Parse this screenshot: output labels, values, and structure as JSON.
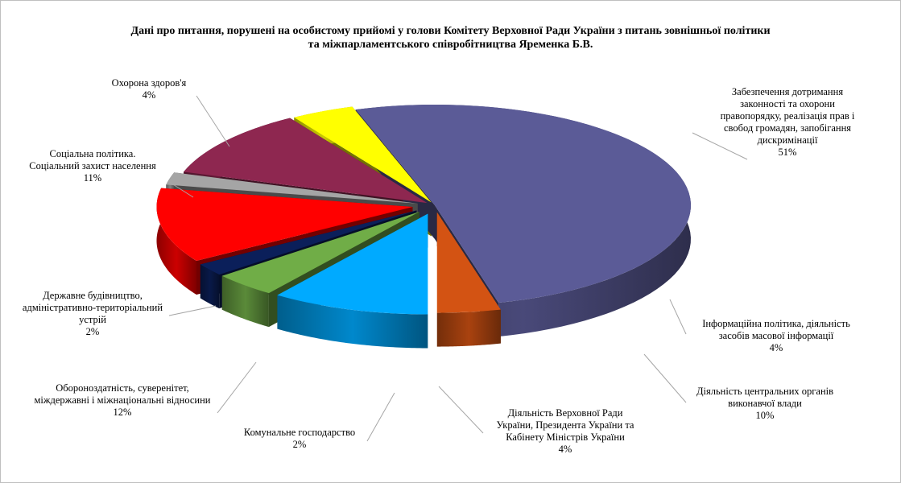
{
  "chart_data": {
    "type": "pie",
    "title_line1": "Дані про питання, порушені  на особистому прийомі  у голови Комітету Верховної Ради України з питань зовнішньої  політики",
    "title_line2": "та міжпарламентського співробітництва  Яременка Б.В.",
    "slices": [
      {
        "label": "Забезпечення дотримання законності та охорони правопорядку, реалізація прав і свобод громадян, запобігання дискримінації",
        "lines": [
          "Забезпечення дотримання",
          "законності та охорони",
          "правопорядку, реалізація прав і",
          "свобод громадян, запобігання",
          "дискримінації"
        ],
        "value": 51,
        "pct": "51%",
        "color": "#5b5b97"
      },
      {
        "label": "Інформаційна  політика,  діяльність засобів масової інформації",
        "lines": [
          "Інформаційна  політика,  діяльність",
          "засобів масової інформації"
        ],
        "value": 4,
        "pct": "4%",
        "color": "#d35313"
      },
      {
        "label": "Діяльність  центральних  органів виконавчої влади",
        "lines": [
          "Діяльність  центральних  органів",
          "виконавчої влади"
        ],
        "value": 10,
        "pct": "10%",
        "color": "#00aaff"
      },
      {
        "label": "Діяльність  Верховної  Ради України,  Президента України  та Кабінету Міністрів  України",
        "lines": [
          "Діяльність  Верховної  Ради",
          "України,  Президента України  та",
          "Кабінету Міністрів  України"
        ],
        "value": 4,
        "pct": "4%",
        "color": "#70ad47"
      },
      {
        "label": "Комунальне господарство",
        "lines": [
          "Комунальне господарство"
        ],
        "value": 2,
        "pct": "2%",
        "color": "#0b1f5a"
      },
      {
        "label": "Обороноздатність, суверенітет, міждержавні і міжнаціональні  відносини",
        "lines": [
          "Обороноздатність, суверенітет,",
          "міждержавні і міжнаціональні  відносини"
        ],
        "value": 12,
        "pct": "12%",
        "color": "#ff0000"
      },
      {
        "label": "Державне будівництво, адміністративно-територіальний устрій",
        "lines": [
          "Державне будівництво,",
          "адміністративно-територіальний",
          "устрій"
        ],
        "value": 2,
        "pct": "2%",
        "color": "#a5a5a5"
      },
      {
        "label": "Соціальна  політика. Соціальний  захист населення",
        "lines": [
          "Соціальна  політика.",
          "Соціальний  захист населення"
        ],
        "value": 11,
        "pct": "11%",
        "color": "#8e2750"
      },
      {
        "label": "Охорона здоров'я",
        "lines": [
          "Охорона здоров'я"
        ],
        "value": 4,
        "pct": "4%",
        "color": "#ffff00"
      }
    ]
  }
}
